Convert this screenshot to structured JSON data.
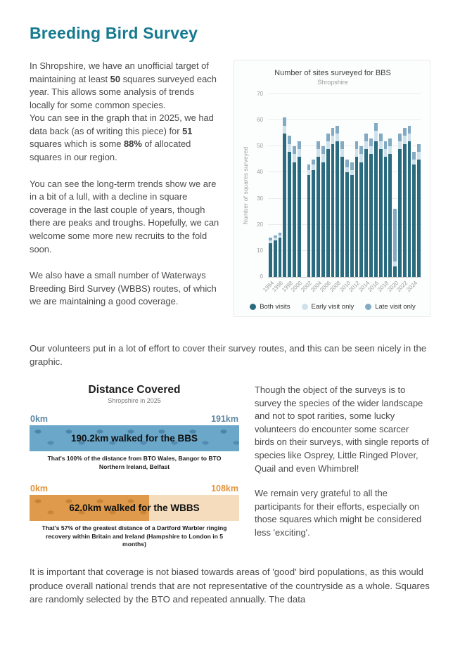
{
  "title": "Breeding Bird Survey",
  "colors": {
    "accent_teal": "#15798f",
    "bar_both": "#2b6b80",
    "bar_early": "#cfe2ec",
    "bar_late": "#82abc3",
    "bbs_distance_blue": "#6aa7c9",
    "wbbs_distance_orange": "#e09a4b",
    "km_label_blue": "#5d87a3",
    "km_label_orange": "#e2943c"
  },
  "intro": {
    "p1a": "In Shropshire, we have an unofficial target of maintaining at least ",
    "p1b": "50",
    "p1c": " squares surveyed each year. This allows some analysis of trends locally for some common species.",
    "p2a": "You can see in the graph that in 2025, we had data back (as of writing this piece) for ",
    "p2b": "51",
    "p2c": " squares which is some ",
    "p2d": "88%",
    "p2e": " of allocated squares in our region.",
    "p3": "You can see the long-term trends show we are in a bit of a lull, with a decline in square coverage in the last couple of years, though there are peaks and troughs. Hopefully, we can welcome some more new recruits to the fold soon.",
    "p4": "We also have a small number of Waterways Breeding Bird Survey (WBBS) routes, of which we are maintaining a good coverage."
  },
  "middle_paragraph": "Our volunteers put in a lot of effort to cover their survey routes, and this can be seen nicely in the graphic.",
  "chart_data": {
    "type": "bar",
    "stacked": true,
    "title": "Number of sites surveyed for BBS",
    "subtitle": "Shropshire",
    "ylabel": "Number of squares surveyed",
    "ylim": [
      0,
      70
    ],
    "y_ticks": [
      0,
      10,
      20,
      30,
      40,
      50,
      60,
      70
    ],
    "legend_position": "bottom",
    "grid": true,
    "years": [
      1994,
      1995,
      1996,
      1997,
      1998,
      1999,
      2000,
      2001,
      2002,
      2003,
      2004,
      2005,
      2006,
      2007,
      2008,
      2009,
      2010,
      2011,
      2012,
      2013,
      2014,
      2015,
      2016,
      2017,
      2018,
      2019,
      2020,
      2021,
      2022,
      2023,
      2024,
      2025
    ],
    "x_tick_years": [
      1994,
      1996,
      1998,
      2000,
      2002,
      2004,
      2006,
      2008,
      2010,
      2012,
      2014,
      2016,
      2018,
      2020,
      2022,
      2024
    ],
    "series": [
      {
        "name": "Both visits",
        "color": "#2b6b80",
        "values": [
          13,
          14,
          15,
          55,
          48,
          44,
          46,
          0,
          39,
          41,
          46,
          44,
          49,
          51,
          52,
          46,
          40,
          39,
          46,
          44,
          49,
          47,
          52,
          49,
          46,
          47,
          4,
          49,
          51,
          52,
          43,
          45
        ]
      },
      {
        "name": "Early visit only",
        "color": "#cfe2ec",
        "values": [
          1,
          1,
          1,
          3,
          3,
          3,
          3,
          0,
          2,
          2,
          3,
          3,
          3,
          3,
          3,
          3,
          2,
          2,
          3,
          3,
          3,
          3,
          4,
          3,
          3,
          3,
          2,
          3,
          3,
          3,
          2,
          3
        ]
      },
      {
        "name": "Late visit only",
        "color": "#82abc3",
        "values": [
          1,
          1,
          1,
          3,
          3,
          3,
          3,
          0,
          2,
          2,
          3,
          3,
          3,
          3,
          3,
          3,
          3,
          3,
          3,
          3,
          3,
          3,
          3,
          3,
          3,
          3,
          20,
          3,
          3,
          3,
          3,
          3
        ]
      }
    ]
  },
  "distance": {
    "title": "Distance Covered",
    "subtitle": "Shropshire in 2025",
    "bbs": {
      "start_label": "0km",
      "end_label": "191km",
      "bar_text": "190.2km walked for the BBS",
      "fill_percent": 100,
      "caption": "That's 100% of the distance from BTO Wales, Bangor to BTO Northern Ireland, Belfast"
    },
    "wbbs": {
      "start_label": "0km",
      "end_label": "108km",
      "bar_text": "62.0km walked for the WBBS",
      "fill_percent": 57,
      "caption": "That's 57% of the greatest distance of a Dartford Warbler ringing recovery within Britain and Ireland (Hampshire to London in 5 months)"
    }
  },
  "right_column": {
    "p1": "Though the object of the surveys is to survey the species of the wider landscape and not to spot rarities, some lucky volunteers do encounter some scarcer birds on their surveys, with single reports of species like Osprey, Little Ringed Plover, Quail and even Whimbrel!",
    "p2": "We remain very grateful to all the participants for their efforts, especially on those squares which might be considered less 'exciting'."
  },
  "footer_paragraph": "It is important that coverage is not biased towards areas of 'good' bird populations, as this would produce overall national trends that are not representative of the countryside as a whole. Squares are randomly selected by the BTO and repeated annually. The data"
}
